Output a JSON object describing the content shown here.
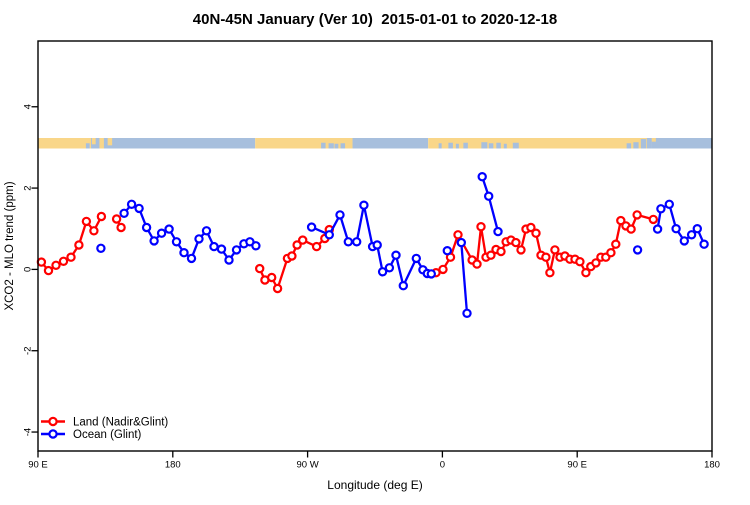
{
  "title": "40N-45N January (Ver 10)  2015-01-01 to 2020-12-18",
  "axes": {
    "xlabel": "Longitude (deg E)",
    "ylabel": "XCO2 - MLO trend (ppm)"
  },
  "legend": [
    {
      "label": "Land (Nadir&Glint)",
      "color": "#FF0000"
    },
    {
      "label": "Ocean (Glint)",
      "color": "#0000FF"
    }
  ],
  "colors": {
    "land_series": "#FF0000",
    "ocean_series": "#0000FF",
    "band_land": "#F9D689",
    "band_ocean": "#A7BFDD",
    "axis": "#000000"
  },
  "band_map": {
    "description": "land/ocean strip rendered near y=3",
    "base": [
      {
        "from": 90,
        "to": 125.4,
        "type": "land"
      },
      {
        "from": 125.4,
        "to": 235,
        "type": "ocean"
      },
      {
        "from": 235,
        "to": 300,
        "type": "land"
      },
      {
        "from": 300,
        "to": 350.5,
        "type": "ocean"
      },
      {
        "from": 350.5,
        "to": 499.3,
        "type": "land"
      },
      {
        "from": 499.3,
        "to": 540,
        "type": "ocean"
      }
    ],
    "land_patches": [
      {
        "from": 126,
        "to": 128.5,
        "frac": 0.6,
        "align": "top"
      },
      {
        "from": 131,
        "to": 134,
        "frac": 1.0,
        "align": "top"
      },
      {
        "from": 136.5,
        "to": 139.5,
        "frac": 0.7,
        "align": "top"
      },
      {
        "from": 499.8,
        "to": 502.5,
        "frac": 0.35,
        "align": "top"
      }
    ],
    "sea_patches": [
      {
        "from": 122,
        "to": 124.5,
        "frac": 0.5,
        "align": "bottom"
      },
      {
        "from": 279,
        "to": 282,
        "frac": 0.55,
        "align": "bottom"
      },
      {
        "from": 284,
        "to": 287.5,
        "frac": 0.5,
        "align": "bottom"
      },
      {
        "from": 288,
        "to": 290.5,
        "frac": 0.45,
        "align": "bottom"
      },
      {
        "from": 292,
        "to": 295,
        "frac": 0.5,
        "align": "bottom"
      },
      {
        "from": 357.5,
        "to": 359.5,
        "frac": 0.5,
        "align": "bottom"
      },
      {
        "from": 364,
        "to": 367,
        "frac": 0.55,
        "align": "bottom"
      },
      {
        "from": 369,
        "to": 371,
        "frac": 0.45,
        "align": "bottom"
      },
      {
        "from": 374,
        "to": 377,
        "frac": 0.55,
        "align": "bottom"
      },
      {
        "from": 386,
        "to": 390,
        "frac": 0.6,
        "align": "bottom"
      },
      {
        "from": 391,
        "to": 394,
        "frac": 0.5,
        "align": "bottom"
      },
      {
        "from": 396,
        "to": 399,
        "frac": 0.55,
        "align": "bottom"
      },
      {
        "from": 401,
        "to": 403,
        "frac": 0.45,
        "align": "bottom"
      },
      {
        "from": 407,
        "to": 411,
        "frac": 0.55,
        "align": "bottom"
      },
      {
        "from": 483,
        "to": 486,
        "frac": 0.5,
        "align": "bottom"
      },
      {
        "from": 487.5,
        "to": 491,
        "frac": 0.6,
        "align": "bottom"
      },
      {
        "from": 492.5,
        "to": 496,
        "frac": 0.9,
        "align": "bottom"
      },
      {
        "from": 496.5,
        "to": 499.3,
        "frac": 1.0,
        "align": "bottom"
      }
    ]
  },
  "chart_data": {
    "type": "line",
    "title": "40N-45N January (Ver 10)  2015-01-01 to 2020-12-18",
    "xlabel": "Longitude (deg E)",
    "ylabel": "XCO2 - MLO trend (ppm)",
    "x_range_plot": [
      90,
      540
    ],
    "y_range_plot": [
      -4.5,
      5.6
    ],
    "grid": false,
    "legend_position": "bottom-left",
    "x_ticks": [
      {
        "pos": 90,
        "label": "90 E"
      },
      {
        "pos": 180,
        "label": "180"
      },
      {
        "pos": 270,
        "label": "90 W"
      },
      {
        "pos": 360,
        "label": "0"
      },
      {
        "pos": 450,
        "label": "90 E"
      },
      {
        "pos": 540,
        "label": "180"
      }
    ],
    "y_ticks": [
      {
        "pos": -4,
        "label": "-4"
      },
      {
        "pos": -2,
        "label": "-2"
      },
      {
        "pos": 0,
        "label": "0"
      },
      {
        "pos": 2,
        "label": "2"
      },
      {
        "pos": 4,
        "label": "4"
      }
    ],
    "series": [
      {
        "name": "Land (Nadir&Glint)",
        "color": "#FF0000",
        "marker": "open-circle",
        "segments": [
          [
            [
              92.3,
              0.18
            ],
            [
              97,
              -0.03
            ],
            [
              102,
              0.1
            ],
            [
              107,
              0.2
            ],
            [
              112,
              0.3
            ],
            [
              117.3,
              0.6
            ],
            [
              122.3,
              1.18
            ],
            [
              127.3,
              0.95
            ],
            [
              132.3,
              1.3
            ]
          ],
          [
            [
              142.5,
              1.24
            ],
            [
              145.5,
              1.03
            ]
          ],
          [
            [
              238,
              0.02
            ],
            [
              241.5,
              -0.26
            ],
            [
              246,
              -0.2
            ],
            [
              250,
              -0.47
            ],
            [
              256.5,
              0.27
            ],
            [
              259.5,
              0.33
            ],
            [
              263,
              0.6
            ],
            [
              266.7,
              0.72
            ],
            [
              276,
              0.56
            ],
            [
              281.5,
              0.76
            ],
            [
              284.5,
              0.98
            ]
          ],
          [
            [
              355.7,
              -0.08
            ],
            [
              360.4,
              0.0
            ],
            [
              365.4,
              0.3
            ],
            [
              370.4,
              0.85
            ],
            [
              379.8,
              0.23
            ],
            [
              383.1,
              0.13
            ],
            [
              385.8,
              1.05
            ],
            [
              389.1,
              0.3
            ],
            [
              392.4,
              0.35
            ],
            [
              395.8,
              0.49
            ],
            [
              399.1,
              0.44
            ],
            [
              402.5,
              0.68
            ],
            [
              405.8,
              0.72
            ],
            [
              409.1,
              0.66
            ],
            [
              412.5,
              0.48
            ],
            [
              415.8,
              0.99
            ],
            [
              419.1,
              1.03
            ],
            [
              422.5,
              0.89
            ],
            [
              425.8,
              0.35
            ],
            [
              429.1,
              0.3
            ],
            [
              431.8,
              -0.08
            ],
            [
              435.1,
              0.48
            ],
            [
              438.5,
              0.3
            ],
            [
              441.8,
              0.33
            ],
            [
              445.1,
              0.25
            ],
            [
              448.5,
              0.25
            ],
            [
              451.8,
              0.19
            ],
            [
              455.8,
              -0.08
            ],
            [
              459.1,
              0.07
            ],
            [
              462.5,
              0.16
            ],
            [
              465.8,
              0.3
            ],
            [
              469.1,
              0.3
            ],
            [
              472.5,
              0.41
            ],
            [
              475.8,
              0.62
            ],
            [
              479.1,
              1.2
            ],
            [
              482.5,
              1.07
            ],
            [
              486,
              0.99
            ],
            [
              490,
              1.34
            ],
            [
              500.8,
              1.23
            ]
          ]
        ]
      },
      {
        "name": "Ocean (Glint)",
        "color": "#0000FF",
        "marker": "open-circle",
        "segments": [
          [
            [
              132,
              0.52
            ]
          ],
          [
            [
              147.5,
              1.38
            ],
            [
              152.5,
              1.6
            ],
            [
              157.5,
              1.5
            ],
            [
              162.5,
              1.03
            ],
            [
              167.5,
              0.7
            ],
            [
              172.5,
              0.89
            ],
            [
              177.5,
              0.99
            ],
            [
              182.5,
              0.68
            ],
            [
              187.5,
              0.41
            ],
            [
              192.5,
              0.27
            ],
            [
              197.5,
              0.75
            ],
            [
              202.5,
              0.95
            ],
            [
              207.5,
              0.56
            ],
            [
              212.5,
              0.5
            ],
            [
              217.5,
              0.23
            ],
            [
              222.5,
              0.48
            ],
            [
              227.5,
              0.63
            ],
            [
              231.5,
              0.68
            ],
            [
              235.5,
              0.58
            ]
          ],
          [
            [
              272.7,
              1.04
            ],
            [
              284.5,
              0.85
            ],
            [
              291.6,
              1.34
            ],
            [
              297.2,
              0.68
            ],
            [
              302.8,
              0.68
            ],
            [
              307.6,
              1.58
            ],
            [
              313.4,
              0.56
            ],
            [
              316.5,
              0.6
            ],
            [
              320.1,
              -0.06
            ],
            [
              324.6,
              0.04
            ],
            [
              329,
              0.35
            ],
            [
              333.9,
              -0.4
            ],
            [
              342.6,
              0.27
            ],
            [
              347,
              -0.01
            ],
            [
              349.9,
              -0.1
            ],
            [
              352.6,
              -0.11
            ]
          ],
          [
            [
              363.3,
              0.46
            ]
          ],
          [
            [
              372.6,
              0.66
            ],
            [
              376.4,
              -1.08
            ]
          ],
          [
            [
              386.6,
              2.28
            ],
            [
              390.9,
              1.8
            ],
            [
              397.1,
              0.93
            ]
          ],
          [
            [
              490.3,
              0.48
            ]
          ],
          [
            [
              503.7,
              0.99
            ],
            [
              505.9,
              1.49
            ],
            [
              511.5,
              1.6
            ],
            [
              516,
              1.0
            ],
            [
              521.5,
              0.7
            ],
            [
              526.4,
              0.85
            ],
            [
              530.2,
              1.0
            ],
            [
              534.7,
              0.62
            ]
          ]
        ]
      }
    ]
  }
}
